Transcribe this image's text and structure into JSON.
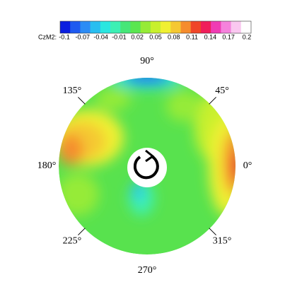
{
  "colorbar": {
    "label": "CzM2:",
    "ticks": [
      "-0.1",
      "-0.07",
      "-0.04",
      "-0.01",
      "0.02",
      "0.05",
      "0.08",
      "0.11",
      "0.14",
      "0.17",
      "0.2"
    ],
    "colors": [
      "#0a1ee0",
      "#1e5af0",
      "#2c8cf5",
      "#28bef0",
      "#2ae6e0",
      "#3cf0b4",
      "#46e678",
      "#5ae650",
      "#96eb37",
      "#c8f02d",
      "#f0f032",
      "#f5c832",
      "#f58c2d",
      "#f04628",
      "#f01e5a",
      "#f03cb4",
      "#f582dc",
      "#fac8f0",
      "#ffffff"
    ]
  },
  "polar": {
    "angle_labels": [
      {
        "text": "90°",
        "angle": 90
      },
      {
        "text": "45°",
        "angle": 45
      },
      {
        "text": "0°",
        "angle": 0
      },
      {
        "text": "315°",
        "angle": 315
      },
      {
        "text": "270°",
        "angle": 270
      },
      {
        "text": "225°",
        "angle": 225
      },
      {
        "text": "180°",
        "angle": 180
      },
      {
        "text": "135°",
        "angle": 135
      }
    ]
  }
}
